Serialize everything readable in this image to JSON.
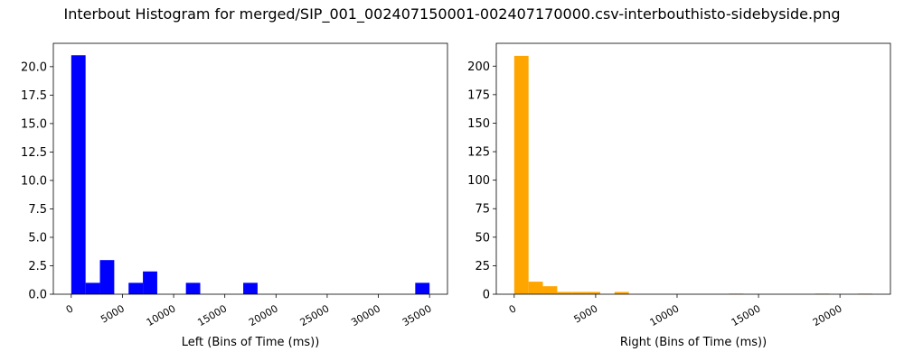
{
  "figure": {
    "suptitle": "Interbout Histogram for merged/SIP_001_002407150001-002407170000.csv-interbouthisto-sidebyside.png"
  },
  "chart_data": [
    {
      "type": "bar",
      "subtype": "histogram",
      "panel": "left",
      "xlabel": "Left (Bins of Time (ms))",
      "ylabel": "",
      "color": "#0000ff",
      "bin_width": 1400,
      "bin_start": 0,
      "xlim": [
        -1750,
        36750
      ],
      "ylim": [
        0,
        22.05
      ],
      "xticks": [
        0,
        5000,
        10000,
        15000,
        20000,
        25000,
        30000,
        35000
      ],
      "xtick_labels": [
        "0",
        "5000",
        "10000",
        "15000",
        "20000",
        "25000",
        "30000",
        "35000"
      ],
      "yticks": [
        0,
        2.5,
        5,
        7.5,
        10,
        12.5,
        15,
        17.5,
        20
      ],
      "ytick_labels": [
        "0.0",
        "2.5",
        "5.0",
        "7.5",
        "10.0",
        "12.5",
        "15.0",
        "17.5",
        "20.0"
      ],
      "values": [
        21,
        1,
        3,
        0,
        1,
        2,
        0,
        0,
        1,
        0,
        0,
        0,
        1,
        0,
        0,
        0,
        0,
        0,
        0,
        0,
        0,
        0,
        0,
        0,
        1,
        0
      ]
    },
    {
      "type": "bar",
      "subtype": "histogram",
      "panel": "right",
      "xlabel": "Right (Bins of Time (ms))",
      "ylabel": "",
      "color": "#ffa500",
      "bin_width": 880,
      "bin_start": 0,
      "xlim": [
        -1100,
        23100
      ],
      "ylim": [
        0,
        220
      ],
      "xticks": [
        0,
        5000,
        10000,
        15000,
        20000
      ],
      "xtick_labels": [
        "0",
        "5000",
        "10000",
        "15000",
        "20000"
      ],
      "yticks": [
        0,
        25,
        50,
        75,
        100,
        125,
        150,
        175,
        200
      ],
      "ytick_labels": [
        "0",
        "25",
        "50",
        "75",
        "100",
        "125",
        "150",
        "175",
        "200"
      ],
      "values": [
        209,
        11,
        7,
        2,
        2,
        2,
        0,
        2,
        0,
        0,
        0,
        0,
        0,
        0,
        0,
        0.5,
        0,
        0,
        0,
        0,
        0,
        0.5,
        0,
        0,
        0.5
      ]
    }
  ]
}
